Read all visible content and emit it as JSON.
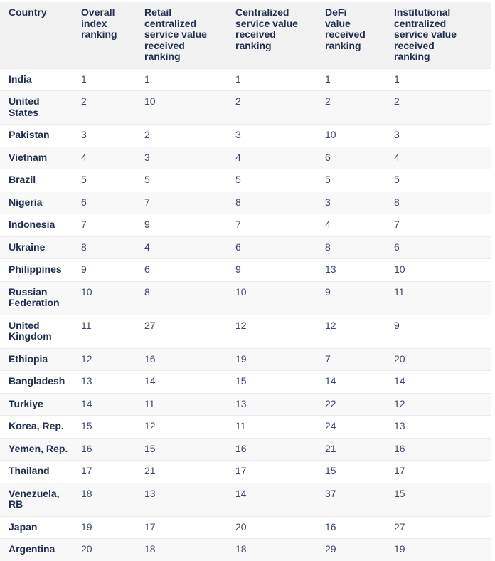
{
  "table": {
    "headers": [
      "Country",
      "Overall index ranking",
      "Retail centralized service value received ranking",
      "Centralized service value received ranking",
      "DeFi value received ranking",
      "Institutional centralized service value received ranking"
    ],
    "rows": [
      [
        "India",
        1,
        1,
        1,
        1,
        1
      ],
      [
        "United States",
        2,
        10,
        2,
        2,
        2
      ],
      [
        "Pakistan",
        3,
        2,
        3,
        10,
        3
      ],
      [
        "Vietnam",
        4,
        3,
        4,
        6,
        4
      ],
      [
        "Brazil",
        5,
        5,
        5,
        5,
        5
      ],
      [
        "Nigeria",
        6,
        7,
        8,
        3,
        8
      ],
      [
        "Indonesia",
        7,
        9,
        7,
        4,
        7
      ],
      [
        "Ukraine",
        8,
        4,
        6,
        8,
        6
      ],
      [
        "Philippines",
        9,
        6,
        9,
        13,
        10
      ],
      [
        "Russian Federation",
        10,
        8,
        10,
        9,
        11
      ],
      [
        "United Kingdom",
        11,
        27,
        12,
        12,
        9
      ],
      [
        "Ethiopia",
        12,
        16,
        19,
        7,
        20
      ],
      [
        "Bangladesh",
        13,
        14,
        15,
        14,
        14
      ],
      [
        "Turkiye",
        14,
        11,
        13,
        22,
        12
      ],
      [
        "Korea, Rep.",
        15,
        12,
        11,
        24,
        13
      ],
      [
        "Yemen, Rep.",
        16,
        15,
        16,
        21,
        16
      ],
      [
        "Thailand",
        17,
        21,
        17,
        15,
        17
      ],
      [
        "Venezuela, RB",
        18,
        13,
        14,
        37,
        15
      ],
      [
        "Japan",
        19,
        17,
        20,
        16,
        27
      ],
      [
        "Argentina",
        20,
        18,
        18,
        29,
        19
      ]
    ]
  }
}
